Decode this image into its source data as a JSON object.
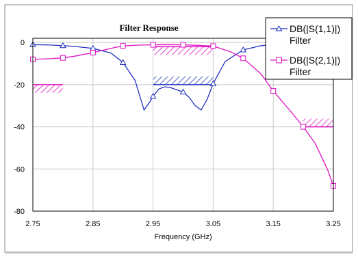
{
  "chart_data": {
    "type": "line",
    "title": "Filter Response",
    "xlabel": "Frequency (GHz)",
    "ylabel": "",
    "xlim": [
      2.75,
      3.25
    ],
    "ylim": [
      -80,
      2
    ],
    "x_ticks": [
      "2.75",
      "2.85",
      "2.95",
      "3.05",
      "3.15",
      "3.25"
    ],
    "x_tick_values": [
      2.75,
      2.85,
      2.95,
      3.05,
      3.15,
      3.25
    ],
    "y_ticks": [
      "0",
      "-20",
      "-40",
      "-60",
      "-80"
    ],
    "y_tick_values": [
      0,
      -20,
      -40,
      -60,
      -80
    ],
    "grid": true,
    "legend_position": "top-right",
    "series": [
      {
        "name": "DB(|S(1,1)|)",
        "name_line2": "Filter",
        "color": "#1f2fbf",
        "marker": "triangle",
        "x": [
          2.75,
          2.78,
          2.8,
          2.82,
          2.85,
          2.88,
          2.9,
          2.92,
          2.935,
          2.945,
          2.95,
          2.96,
          2.97,
          2.98,
          3.0,
          3.01,
          3.02,
          3.03,
          3.04,
          3.05,
          3.07,
          3.1,
          3.13,
          3.15,
          3.2,
          3.25
        ],
        "y": [
          -1.0,
          -1.2,
          -1.5,
          -1.9,
          -2.8,
          -5.0,
          -9.5,
          -18.0,
          -32.0,
          -28.0,
          -25.5,
          -22.0,
          -21.0,
          -21.5,
          -23.5,
          -26.0,
          -30.0,
          -32.0,
          -27.0,
          -19.5,
          -9.0,
          -3.5,
          -1.5,
          -1.0,
          -0.8,
          -0.7
        ]
      },
      {
        "name": "DB(|S(2,1)|)",
        "name_line2": "Filter",
        "color": "#e010c0",
        "marker": "square",
        "x": [
          2.75,
          2.78,
          2.8,
          2.82,
          2.85,
          2.88,
          2.9,
          2.93,
          2.95,
          2.97,
          3.0,
          3.02,
          3.05,
          3.08,
          3.1,
          3.13,
          3.15,
          3.18,
          3.2,
          3.22,
          3.24,
          3.25
        ],
        "y": [
          -8.0,
          -7.7,
          -7.3,
          -6.5,
          -4.8,
          -2.8,
          -1.6,
          -1.2,
          -1.1,
          -1.0,
          -1.1,
          -1.3,
          -1.7,
          -4.5,
          -7.5,
          -15.0,
          -23.0,
          -33.0,
          -40.0,
          -48.0,
          -60.0,
          -68.0
        ]
      }
    ],
    "spec_masks": [
      {
        "color": "#1f2fbf",
        "x": [
          2.95,
          3.05
        ],
        "y": -20,
        "side": "above"
      },
      {
        "color": "#e010c0",
        "x": [
          2.95,
          3.05
        ],
        "y": -2,
        "side": "below"
      },
      {
        "color": "#e010c0",
        "x": [
          2.75,
          2.8
        ],
        "y": -20,
        "side": "below"
      },
      {
        "color": "#e010c0",
        "x": [
          3.2,
          3.25
        ],
        "y": -40,
        "side": "above"
      }
    ]
  }
}
